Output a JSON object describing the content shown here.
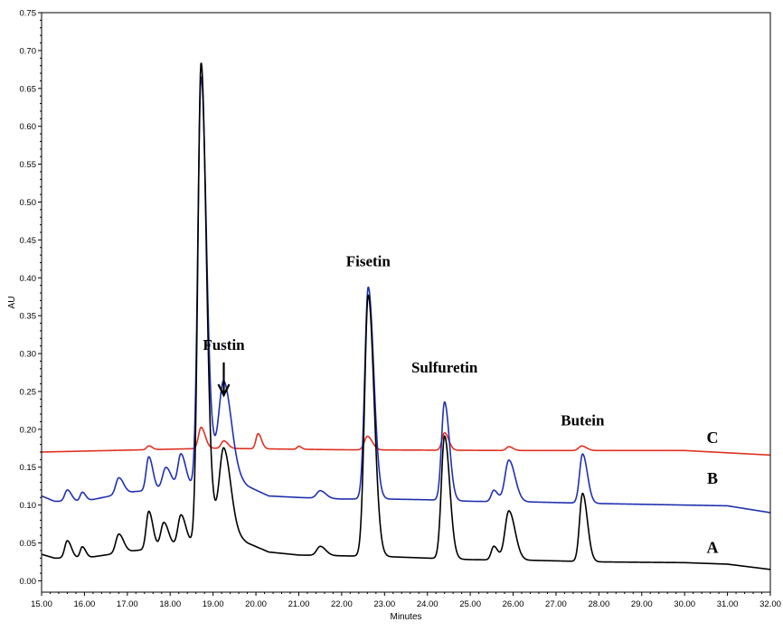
{
  "chart_data": {
    "type": "line",
    "xlabel": "Minutes",
    "ylabel": "AU",
    "xlim": [
      15.0,
      32.0
    ],
    "ylim": [
      -0.015,
      0.75
    ],
    "x_ticks": [
      "15.00",
      "16.00",
      "17.00",
      "18.00",
      "19.00",
      "20.00",
      "21.00",
      "22.00",
      "23.00",
      "24.00",
      "25.00",
      "26.00",
      "27.00",
      "28.00",
      "29.00",
      "30.00",
      "31.00",
      "32.00"
    ],
    "y_ticks": [
      "0.00",
      "0.05",
      "0.10",
      "0.15",
      "0.20",
      "0.25",
      "0.30",
      "0.35",
      "0.40",
      "0.45",
      "0.50",
      "0.55",
      "0.60",
      "0.65",
      "0.70",
      "0.75"
    ],
    "series": [
      {
        "name": "C",
        "color": "#e03020",
        "baseline": [
          [
            15.0,
            0.17
          ],
          [
            19.0,
            0.175
          ],
          [
            22.0,
            0.173
          ],
          [
            26.0,
            0.172
          ],
          [
            30.0,
            0.172
          ],
          [
            32.0,
            0.166
          ]
        ],
        "peaks": [
          [
            17.5,
            0.005,
            0.05
          ],
          [
            18.72,
            0.028,
            0.06
          ],
          [
            19.25,
            0.01,
            0.06
          ],
          [
            20.05,
            0.02,
            0.05
          ],
          [
            21.0,
            0.004,
            0.04
          ],
          [
            22.6,
            0.018,
            0.07
          ],
          [
            24.4,
            0.023,
            0.06
          ],
          [
            25.9,
            0.005,
            0.06
          ],
          [
            27.6,
            0.006,
            0.07
          ]
        ]
      },
      {
        "name": "B",
        "color": "#2030b0",
        "baseline": [
          [
            15.0,
            0.112
          ],
          [
            15.3,
            0.105
          ],
          [
            16.0,
            0.105
          ],
          [
            16.6,
            0.112
          ],
          [
            17.2,
            0.118
          ],
          [
            18.0,
            0.12
          ],
          [
            18.6,
            0.125
          ],
          [
            19.0,
            0.16
          ],
          [
            19.8,
            0.125
          ],
          [
            20.3,
            0.112
          ],
          [
            21.0,
            0.11
          ],
          [
            22.0,
            0.108
          ],
          [
            23.0,
            0.108
          ],
          [
            24.0,
            0.107
          ],
          [
            25.0,
            0.105
          ],
          [
            26.5,
            0.104
          ],
          [
            28.0,
            0.102
          ],
          [
            30.0,
            0.1
          ],
          [
            31.0,
            0.099
          ],
          [
            32.0,
            0.09
          ]
        ],
        "peaks": [
          [
            15.6,
            0.015,
            0.06
          ],
          [
            15.95,
            0.012,
            0.05
          ],
          [
            16.8,
            0.022,
            0.07
          ],
          [
            17.5,
            0.045,
            0.06
          ],
          [
            17.9,
            0.03,
            0.08
          ],
          [
            18.25,
            0.045,
            0.07
          ],
          [
            18.72,
            0.53,
            0.075
          ],
          [
            19.25,
            0.115,
            0.11
          ],
          [
            21.5,
            0.01,
            0.08
          ],
          [
            22.62,
            0.28,
            0.08
          ],
          [
            24.4,
            0.13,
            0.07
          ],
          [
            25.55,
            0.015,
            0.06
          ],
          [
            25.9,
            0.055,
            0.09
          ],
          [
            27.62,
            0.065,
            0.07
          ]
        ]
      },
      {
        "name": "A",
        "color": "#000000",
        "baseline": [
          [
            15.0,
            0.035
          ],
          [
            15.3,
            0.03
          ],
          [
            16.0,
            0.03
          ],
          [
            16.6,
            0.035
          ],
          [
            17.2,
            0.04
          ],
          [
            18.0,
            0.045
          ],
          [
            18.6,
            0.05
          ],
          [
            19.0,
            0.08
          ],
          [
            19.8,
            0.05
          ],
          [
            20.3,
            0.038
          ],
          [
            21.0,
            0.034
          ],
          [
            22.0,
            0.033
          ],
          [
            23.0,
            0.032
          ],
          [
            24.0,
            0.03
          ],
          [
            25.0,
            0.028
          ],
          [
            26.5,
            0.027
          ],
          [
            28.0,
            0.025
          ],
          [
            30.0,
            0.024
          ],
          [
            31.0,
            0.022
          ],
          [
            32.0,
            0.015
          ]
        ],
        "peaks": [
          [
            15.6,
            0.023,
            0.06
          ],
          [
            15.95,
            0.015,
            0.05
          ],
          [
            16.8,
            0.025,
            0.07
          ],
          [
            17.5,
            0.05,
            0.06
          ],
          [
            17.85,
            0.033,
            0.07
          ],
          [
            18.25,
            0.04,
            0.07
          ],
          [
            18.72,
            0.625,
            0.075
          ],
          [
            19.25,
            0.105,
            0.1
          ],
          [
            21.5,
            0.012,
            0.08
          ],
          [
            22.62,
            0.345,
            0.085
          ],
          [
            24.4,
            0.162,
            0.075
          ],
          [
            25.55,
            0.018,
            0.06
          ],
          [
            25.9,
            0.065,
            0.09
          ],
          [
            27.62,
            0.09,
            0.07
          ]
        ]
      }
    ],
    "annotations": [
      {
        "text": "Fustin",
        "x": 19.25,
        "y": 0.305,
        "arrow": true
      },
      {
        "text": "Fisetin",
        "x": 22.62,
        "y": 0.415
      },
      {
        "text": "Sulfuretin",
        "x": 24.4,
        "y": 0.275
      },
      {
        "text": "Butein",
        "x": 27.62,
        "y": 0.205
      }
    ],
    "trace_labels": [
      {
        "text": "C",
        "x": 30.65,
        "y": 0.182
      },
      {
        "text": "B",
        "x": 30.65,
        "y": 0.128
      },
      {
        "text": "A",
        "x": 30.65,
        "y": 0.037
      }
    ]
  }
}
